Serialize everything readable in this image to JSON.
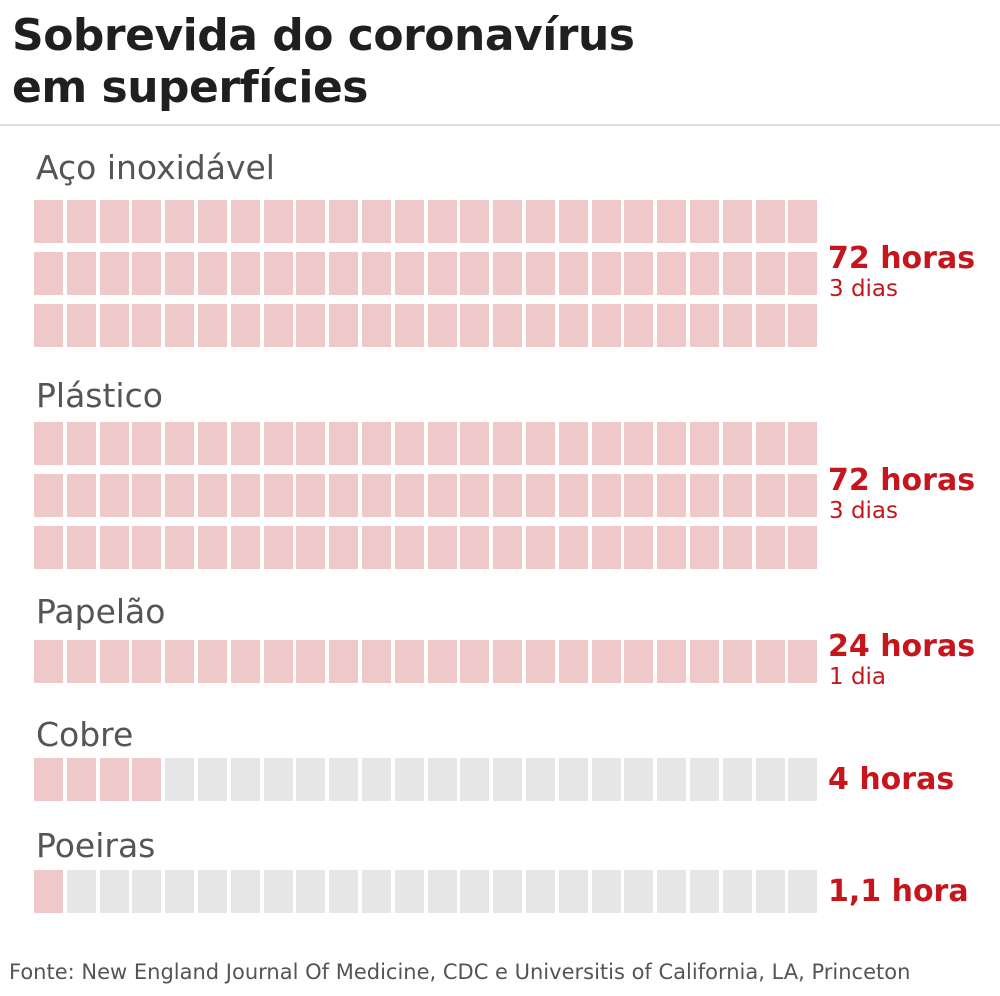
{
  "title_lines": [
    "Sobrevida do coronavírus",
    "em superfícies"
  ],
  "chart_data": {
    "type": "waffle",
    "unit": "1 hour per block",
    "blocks_per_row": 24,
    "colors": {
      "filled": "#efc9ca",
      "empty": "#e6e6e6",
      "value_text": "#c4161c"
    },
    "categories": [
      {
        "name": "Aço inoxidável",
        "hours": 72,
        "rows": 3,
        "value_label": "72 horas",
        "sub_label": "3 dias"
      },
      {
        "name": "Plástico",
        "hours": 72,
        "rows": 3,
        "value_label": "72 horas",
        "sub_label": "3 dias"
      },
      {
        "name": "Papelão",
        "hours": 24,
        "rows": 1,
        "value_label": "24 horas",
        "sub_label": "1 dia"
      },
      {
        "name": "Cobre",
        "hours": 4,
        "rows": 1,
        "value_label": "4 horas",
        "sub_label": ""
      },
      {
        "name": "Poeiras",
        "hours": 1.1,
        "rows": 1,
        "value_label": "1,1 hora",
        "sub_label": ""
      }
    ]
  },
  "source": "Fonte: New England Journal Of Medicine, CDC e Universitis of California, LA, Princeton"
}
